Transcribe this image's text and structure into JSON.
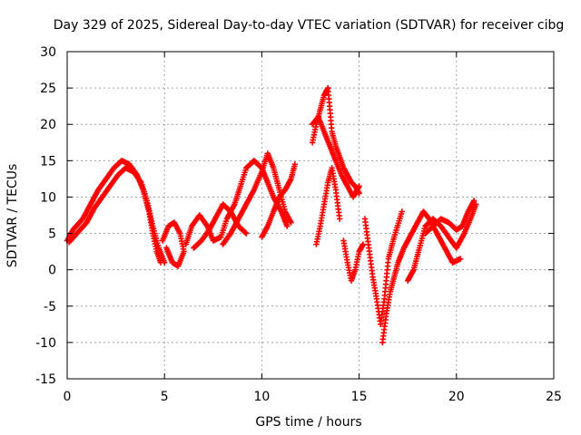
{
  "chart_data": {
    "type": "scatter",
    "title": "Day 329 of 2025, Sidereal Day-to-day VTEC variation (SDTVAR) for receiver cibg",
    "xlabel": "GPS time / hours",
    "ylabel": "SDTVAR / TECUs",
    "xlim": [
      0,
      25
    ],
    "ylim": [
      -15,
      30
    ],
    "xticks": [
      0,
      5,
      10,
      15,
      20,
      25
    ],
    "yticks": [
      -15,
      -10,
      -5,
      0,
      5,
      10,
      15,
      20,
      25,
      30
    ],
    "xtick_labels": [
      "0",
      "5",
      "10",
      "15",
      "20",
      "25"
    ],
    "ytick_labels": [
      "-15",
      "-10",
      "-5",
      "0",
      "5",
      "10",
      "15",
      "20",
      "25",
      "30"
    ],
    "grid": true,
    "marker": "+",
    "color": "#ff0000",
    "series": [
      {
        "name": "trace-1",
        "points": [
          [
            0,
            4
          ],
          [
            0.3,
            5.5
          ],
          [
            0.8,
            7
          ],
          [
            1.2,
            9
          ],
          [
            1.6,
            11
          ],
          [
            2,
            12.5
          ],
          [
            2.4,
            14
          ],
          [
            2.8,
            15
          ],
          [
            3.2,
            14.5
          ],
          [
            3.6,
            13
          ],
          [
            3.9,
            11
          ],
          [
            4.2,
            8
          ],
          [
            4.4,
            5
          ],
          [
            4.6,
            2.5
          ],
          [
            4.8,
            1
          ]
        ]
      },
      {
        "name": "trace-2",
        "points": [
          [
            0.1,
            3.8
          ],
          [
            0.5,
            5
          ],
          [
            1,
            6.5
          ],
          [
            1.4,
            8.5
          ],
          [
            1.8,
            10
          ],
          [
            2.2,
            11.5
          ],
          [
            2.6,
            13
          ],
          [
            3,
            14
          ],
          [
            3.4,
            13.5
          ],
          [
            3.8,
            12
          ],
          [
            4.1,
            9.5
          ],
          [
            4.4,
            6
          ],
          [
            4.7,
            3
          ],
          [
            5,
            1
          ]
        ]
      },
      {
        "name": "trace-3",
        "points": [
          [
            4.9,
            4
          ],
          [
            5.2,
            6
          ],
          [
            5.5,
            6.5
          ],
          [
            5.8,
            5
          ],
          [
            6,
            2.5
          ],
          [
            5.7,
            0.5
          ],
          [
            5.4,
            1
          ],
          [
            5.1,
            3
          ]
        ]
      },
      {
        "name": "trace-4",
        "points": [
          [
            6.1,
            3.5
          ],
          [
            6.4,
            6
          ],
          [
            6.8,
            7.5
          ],
          [
            7.2,
            6
          ],
          [
            7.5,
            4
          ],
          [
            7.9,
            4.5
          ],
          [
            8.2,
            7
          ],
          [
            8.6,
            9
          ],
          [
            8.9,
            11.5
          ],
          [
            9.2,
            14
          ],
          [
            9.6,
            15
          ],
          [
            10,
            14
          ],
          [
            10.3,
            12
          ],
          [
            10.6,
            10
          ],
          [
            11,
            8
          ],
          [
            11.3,
            6
          ]
        ]
      },
      {
        "name": "trace-5",
        "points": [
          [
            6.5,
            3
          ],
          [
            6.9,
            4
          ],
          [
            7.3,
            5.5
          ],
          [
            7.7,
            7.5
          ],
          [
            8,
            9
          ],
          [
            8.4,
            8
          ],
          [
            8.8,
            6
          ],
          [
            9.2,
            5
          ]
        ]
      },
      {
        "name": "trace-6",
        "points": [
          [
            8,
            3.5
          ],
          [
            8.4,
            5
          ],
          [
            8.8,
            7
          ],
          [
            9.2,
            9
          ],
          [
            9.6,
            11
          ],
          [
            10,
            13.5
          ],
          [
            10.3,
            16
          ],
          [
            10.6,
            14
          ],
          [
            10.9,
            11
          ],
          [
            11.2,
            8
          ],
          [
            11.5,
            6.5
          ]
        ]
      },
      {
        "name": "trace-7",
        "points": [
          [
            10,
            4.5
          ],
          [
            10.3,
            6
          ],
          [
            10.6,
            8
          ],
          [
            10.9,
            10
          ],
          [
            11.2,
            11
          ],
          [
            11.5,
            12.5
          ],
          [
            11.7,
            14.5
          ]
        ]
      },
      {
        "name": "trace-8",
        "points": [
          [
            12.6,
            17.5
          ],
          [
            12.8,
            20
          ],
          [
            13,
            22
          ],
          [
            13.2,
            24
          ],
          [
            13.4,
            25
          ],
          [
            13.5,
            22
          ],
          [
            13.6,
            19
          ],
          [
            13.8,
            17
          ],
          [
            14,
            15.5
          ],
          [
            14.2,
            14
          ],
          [
            14.4,
            13
          ],
          [
            14.6,
            12
          ],
          [
            14.8,
            11.5
          ],
          [
            15,
            10.5
          ]
        ]
      },
      {
        "name": "trace-9",
        "points": [
          [
            12.6,
            20
          ],
          [
            12.9,
            21
          ],
          [
            13.2,
            19
          ],
          [
            13.5,
            17
          ],
          [
            13.8,
            15
          ],
          [
            14.1,
            13
          ],
          [
            14.4,
            11.5
          ],
          [
            14.7,
            10
          ],
          [
            15,
            11.5
          ]
        ]
      },
      {
        "name": "trace-10",
        "points": [
          [
            12.8,
            3.5
          ],
          [
            13,
            6
          ],
          [
            13.2,
            9
          ],
          [
            13.4,
            12
          ],
          [
            13.6,
            14
          ],
          [
            13.8,
            11
          ],
          [
            14,
            7
          ]
        ]
      },
      {
        "name": "trace-11",
        "points": [
          [
            14.2,
            4
          ],
          [
            14.4,
            1
          ],
          [
            14.6,
            -1.5
          ],
          [
            14.8,
            0
          ],
          [
            15,
            2.5
          ],
          [
            15.2,
            3.5
          ]
        ]
      },
      {
        "name": "trace-12",
        "points": [
          [
            15.3,
            7
          ],
          [
            15.5,
            3
          ],
          [
            15.7,
            -1
          ],
          [
            15.9,
            -4
          ],
          [
            16.1,
            -7.5
          ],
          [
            16.3,
            -4
          ],
          [
            16.5,
            1.5
          ],
          [
            16.8,
            4.5
          ],
          [
            17.2,
            8
          ]
        ]
      },
      {
        "name": "trace-13",
        "points": [
          [
            16.2,
            -10
          ],
          [
            16.4,
            -6
          ],
          [
            16.6,
            -3
          ],
          [
            16.8,
            -1
          ],
          [
            17,
            1
          ],
          [
            17.3,
            3
          ],
          [
            17.6,
            4.5
          ],
          [
            18,
            6.5
          ],
          [
            18.3,
            8
          ],
          [
            18.6,
            7
          ],
          [
            19,
            5
          ],
          [
            19.4,
            3
          ],
          [
            19.8,
            1
          ],
          [
            20.2,
            1.5
          ]
        ]
      },
      {
        "name": "trace-14",
        "points": [
          [
            17.5,
            -1.5
          ],
          [
            17.8,
            0
          ],
          [
            18.1,
            3
          ],
          [
            18.4,
            6
          ],
          [
            18.8,
            7
          ],
          [
            19.2,
            6
          ],
          [
            19.6,
            4.5
          ],
          [
            20,
            3
          ],
          [
            20.4,
            5
          ],
          [
            20.8,
            7.5
          ],
          [
            21,
            9
          ]
        ]
      },
      {
        "name": "trace-15",
        "points": [
          [
            18.4,
            5
          ],
          [
            18.8,
            6
          ],
          [
            19.2,
            7
          ],
          [
            19.6,
            6.5
          ],
          [
            20,
            5.5
          ],
          [
            20.3,
            6
          ],
          [
            20.6,
            8
          ],
          [
            20.9,
            9.5
          ]
        ]
      }
    ]
  }
}
